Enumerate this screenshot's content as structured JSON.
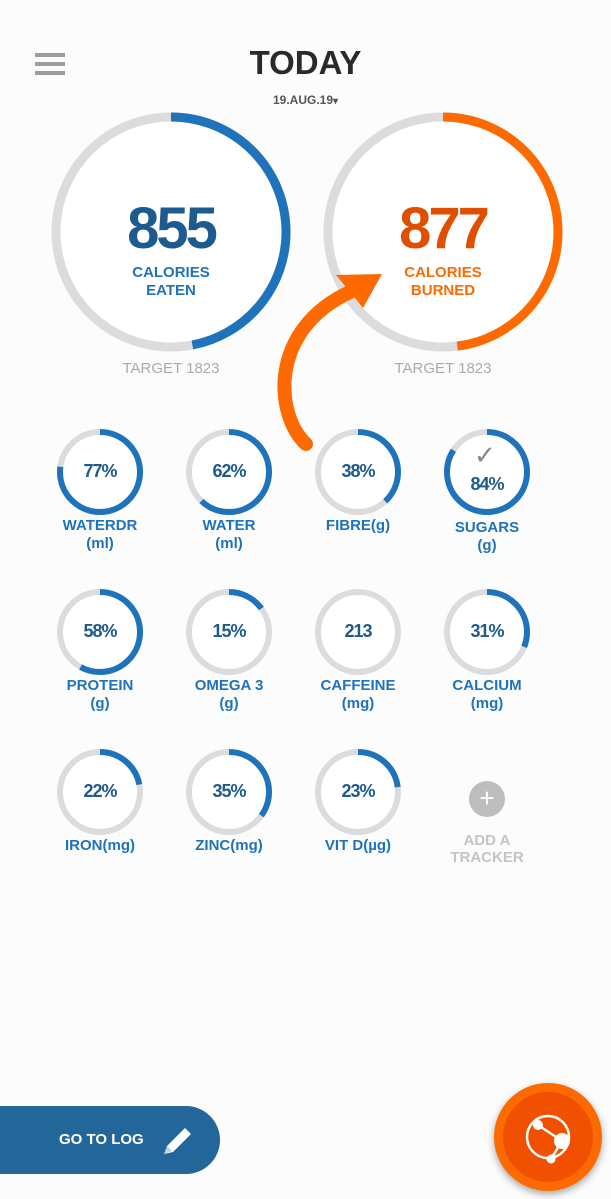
{
  "header": {
    "title": "TODAY",
    "date": "19.AUG.19",
    "date_caret": "▾",
    "menu_icon": "hamburger-icon"
  },
  "calories": {
    "eaten": {
      "value": "855",
      "label_line1": "CALORIES",
      "label_line2": "EATEN",
      "target": "TARGET 1823",
      "progress": 0.47,
      "color": "#1f73ba"
    },
    "burned": {
      "value": "877",
      "label_line1": "CALORIES",
      "label_line2": "BURNED",
      "target": "TARGET 1823",
      "progress": 0.48,
      "color": "#ff6a00"
    }
  },
  "trackers": [
    {
      "value": "77%",
      "line1": "WATERDR",
      "line2": "(ml)",
      "progress": 0.77
    },
    {
      "value": "62%",
      "line1": "WATER",
      "line2": "(ml)",
      "progress": 0.62
    },
    {
      "value": "38%",
      "line1": "FIBRE(g)",
      "line2": "",
      "progress": 0.38
    },
    {
      "value": "84%",
      "line1": "SUGARS",
      "line2": "(g)",
      "progress": 0.84,
      "check": "✓"
    },
    {
      "value": "58%",
      "line1": "PROTEIN",
      "line2": "(g)",
      "progress": 0.58
    },
    {
      "value": "15%",
      "line1": "OMEGA 3",
      "line2": "(g)",
      "progress": 0.15
    },
    {
      "value": "213",
      "line1": "CAFFEINE",
      "line2": "(mg)",
      "progress": 0
    },
    {
      "value": "31%",
      "line1": "CALCIUM",
      "line2": "(mg)",
      "progress": 0.31
    },
    {
      "value": "22%",
      "line1": "IRON(mg)",
      "line2": "",
      "progress": 0.22
    },
    {
      "value": "35%",
      "line1": "ZINC(mg)",
      "line2": "",
      "progress": 0.35
    },
    {
      "value": "23%",
      "line1": "VIT D(µg)",
      "line2": "",
      "progress": 0.23
    }
  ],
  "add_tracker": {
    "icon": "+",
    "line1": "ADD A",
    "line2": "TRACKER"
  },
  "footer": {
    "go_to_log": "GO TO LOG",
    "fab_icon": "connections-icon"
  },
  "colors": {
    "blue": "#1f73ba",
    "orange": "#ff6a00",
    "track": "#dcdcdc"
  }
}
